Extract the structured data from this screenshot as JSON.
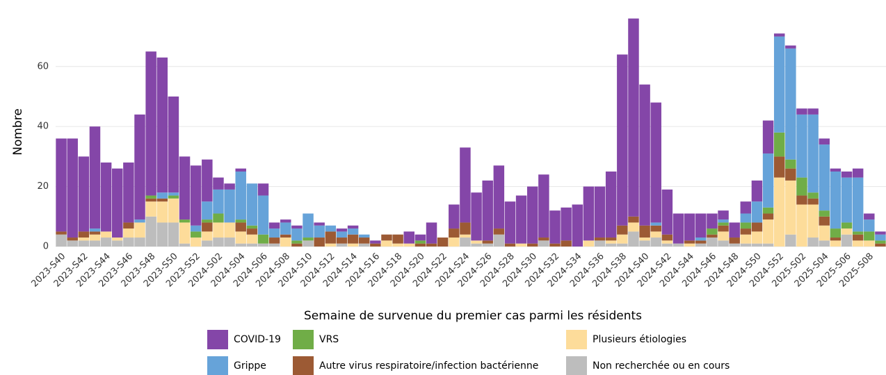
{
  "chart_data": {
    "type": "stacked_bar",
    "x_label": "Semaine de survenue du premier cas parmi les résidents",
    "y_label": "Nombre",
    "ylim": [
      0,
      78
    ],
    "yticks": [
      0,
      20,
      40,
      60
    ],
    "grid": true,
    "categories": [
      "2023-S40",
      null,
      "2023-S42",
      null,
      "2023-S44",
      null,
      "2023-S46",
      null,
      "2023-S48",
      null,
      "2023-S50",
      null,
      "2023-S52",
      null,
      "2024-S02",
      null,
      "2024-S04",
      null,
      "2024-S06",
      null,
      "2024-S08",
      null,
      "2024-S10",
      null,
      "2024-S12",
      null,
      "2024-S14",
      null,
      "2024-S16",
      null,
      "2024-S18",
      null,
      "2024-S20",
      null,
      "2024-S22",
      null,
      "2024-S24",
      null,
      "2024-S26",
      null,
      "2024-S28",
      null,
      "2024-S30",
      null,
      "2024-S32",
      null,
      "2024-S34",
      null,
      "2024-S36",
      null,
      "2024-S38",
      null,
      "2024-S40",
      null,
      "2024-S42",
      null,
      "2024-S44",
      null,
      "2024-S46",
      null,
      "2024-S48",
      null,
      "2024-S50",
      null,
      "2024-S52",
      null,
      "2025-S02",
      null,
      "2025-S04",
      null,
      "2025-S06",
      null,
      "2025-S08",
      null
    ],
    "series": [
      {
        "name": "COVID-19",
        "color": "#8446a8",
        "values": [
          31,
          33,
          25,
          34,
          23,
          23,
          20,
          35,
          48,
          45,
          32,
          21,
          20,
          14,
          4,
          2,
          1,
          0,
          4,
          2,
          1,
          1,
          0,
          1,
          0,
          1,
          1,
          0,
          1,
          0,
          0,
          4,
          2,
          7,
          0,
          8,
          25,
          16,
          20,
          21,
          14,
          16,
          19,
          21,
          11,
          11,
          14,
          18,
          17,
          22,
          57,
          66,
          47,
          40,
          15,
          10,
          9,
          8,
          5,
          3,
          5,
          4,
          7,
          11,
          1,
          1,
          2,
          2,
          2,
          1,
          2,
          3,
          2,
          1
        ]
      },
      {
        "name": "Grippe",
        "color": "#66a3d9",
        "values": [
          0,
          0,
          0,
          1,
          0,
          0,
          0,
          1,
          0,
          2,
          1,
          0,
          2,
          6,
          8,
          11,
          16,
          14,
          13,
          3,
          4,
          4,
          8,
          4,
          2,
          2,
          2,
          1,
          0,
          0,
          0,
          0,
          0,
          0,
          0,
          0,
          0,
          0,
          0,
          0,
          0,
          0,
          0,
          0,
          0,
          0,
          0,
          0,
          0,
          0,
          0,
          0,
          0,
          1,
          0,
          0,
          0,
          1,
          0,
          1,
          0,
          3,
          7,
          18,
          32,
          37,
          21,
          26,
          22,
          19,
          15,
          18,
          4,
          2
        ]
      },
      {
        "name": "VRS",
        "color": "#70ad47",
        "values": [
          0,
          0,
          0,
          0,
          0,
          0,
          0,
          0,
          1,
          0,
          1,
          1,
          2,
          1,
          3,
          0,
          1,
          1,
          3,
          0,
          0,
          1,
          1,
          0,
          0,
          0,
          0,
          0,
          0,
          0,
          0,
          0,
          1,
          0,
          0,
          0,
          0,
          0,
          0,
          0,
          0,
          0,
          0,
          0,
          0,
          0,
          0,
          0,
          0,
          0,
          0,
          0,
          0,
          0,
          0,
          0,
          0,
          0,
          2,
          1,
          0,
          2,
          0,
          2,
          8,
          3,
          6,
          2,
          2,
          3,
          2,
          1,
          3,
          1
        ]
      },
      {
        "name": "Autre virus respiratoire/infection bactérienne",
        "color": "#9c5a34",
        "values": [
          1,
          1,
          2,
          1,
          0,
          0,
          2,
          0,
          1,
          1,
          0,
          0,
          0,
          3,
          0,
          0,
          3,
          2,
          0,
          2,
          1,
          1,
          0,
          3,
          4,
          2,
          3,
          2,
          1,
          2,
          3,
          0,
          1,
          1,
          3,
          3,
          4,
          0,
          1,
          2,
          1,
          0,
          1,
          1,
          1,
          2,
          0,
          0,
          1,
          1,
          3,
          2,
          4,
          2,
          2,
          0,
          1,
          1,
          1,
          2,
          2,
          2,
          3,
          2,
          7,
          4,
          3,
          2,
          3,
          1,
          0,
          2,
          0,
          1
        ]
      },
      {
        "name": "Plusieurs étiologies",
        "color": "#fddc9a",
        "values": [
          0,
          0,
          1,
          2,
          2,
          1,
          3,
          5,
          5,
          7,
          8,
          7,
          3,
          3,
          5,
          5,
          4,
          3,
          0,
          0,
          3,
          0,
          0,
          0,
          1,
          0,
          1,
          0,
          0,
          2,
          1,
          1,
          0,
          0,
          0,
          3,
          1,
          1,
          0,
          0,
          0,
          1,
          0,
          0,
          0,
          0,
          0,
          2,
          0,
          1,
          3,
          3,
          1,
          2,
          1,
          0,
          1,
          0,
          0,
          3,
          0,
          3,
          4,
          8,
          23,
          18,
          14,
          11,
          5,
          2,
          2,
          2,
          2,
          0
        ]
      },
      {
        "name": "Non recherchée ou en cours",
        "color": "#bdbdbd",
        "values": [
          4,
          2,
          2,
          2,
          3,
          2,
          3,
          3,
          10,
          8,
          8,
          1,
          0,
          2,
          3,
          3,
          1,
          1,
          1,
          1,
          0,
          0,
          2,
          0,
          0,
          1,
          0,
          1,
          0,
          0,
          0,
          0,
          0,
          0,
          0,
          0,
          3,
          1,
          1,
          4,
          0,
          0,
          0,
          2,
          0,
          0,
          0,
          0,
          2,
          1,
          1,
          5,
          2,
          3,
          1,
          1,
          0,
          1,
          3,
          2,
          1,
          1,
          1,
          1,
          0,
          4,
          0,
          3,
          2,
          0,
          4,
          0,
          0,
          0
        ]
      }
    ]
  }
}
